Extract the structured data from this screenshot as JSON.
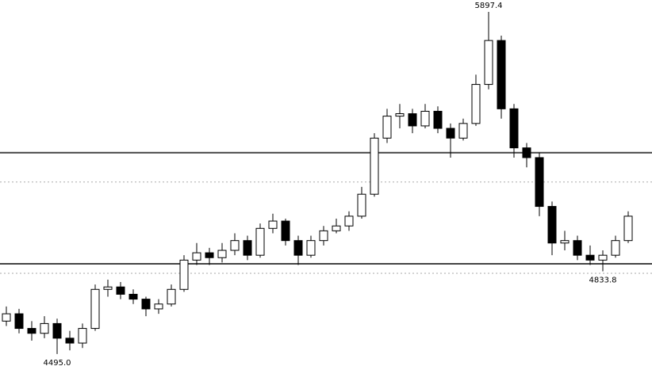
{
  "chart_data": {
    "type": "candlestick",
    "up_color": "#ffffff",
    "down_color": "#000000",
    "edge_color": "#000000",
    "ylim": [
      4446,
      5946
    ],
    "candles": [
      [
        4630,
        4690,
        4610,
        4660
      ],
      [
        4660,
        4680,
        4580,
        4600
      ],
      [
        4600,
        4630,
        4550,
        4580
      ],
      [
        4580,
        4650,
        4560,
        4620
      ],
      [
        4620,
        4640,
        4495,
        4560
      ],
      [
        4560,
        4590,
        4510,
        4540
      ],
      [
        4540,
        4620,
        4520,
        4600
      ],
      [
        4600,
        4780,
        4590,
        4760
      ],
      [
        4760,
        4800,
        4730,
        4770
      ],
      [
        4770,
        4790,
        4720,
        4740
      ],
      [
        4740,
        4760,
        4700,
        4720
      ],
      [
        4720,
        4730,
        4650,
        4680
      ],
      [
        4680,
        4720,
        4660,
        4700
      ],
      [
        4700,
        4780,
        4690,
        4760
      ],
      [
        4760,
        4900,
        4750,
        4880
      ],
      [
        4880,
        4950,
        4860,
        4910
      ],
      [
        4910,
        4930,
        4860,
        4890
      ],
      [
        4890,
        4950,
        4870,
        4920
      ],
      [
        4920,
        4990,
        4900,
        4960
      ],
      [
        4960,
        4980,
        4880,
        4900
      ],
      [
        4900,
        5030,
        4890,
        5010
      ],
      [
        5010,
        5070,
        4990,
        5040
      ],
      [
        5040,
        5050,
        4940,
        4960
      ],
      [
        4960,
        4980,
        4860,
        4900
      ],
      [
        4900,
        4980,
        4890,
        4960
      ],
      [
        4960,
        5020,
        4940,
        5000
      ],
      [
        5000,
        5050,
        4990,
        5020
      ],
      [
        5020,
        5080,
        5000,
        5060
      ],
      [
        5060,
        5180,
        5050,
        5150
      ],
      [
        5150,
        5400,
        5140,
        5380
      ],
      [
        5380,
        5500,
        5360,
        5470
      ],
      [
        5470,
        5520,
        5420,
        5480
      ],
      [
        5480,
        5500,
        5400,
        5430
      ],
      [
        5430,
        5520,
        5420,
        5490
      ],
      [
        5490,
        5510,
        5400,
        5420
      ],
      [
        5420,
        5440,
        5300,
        5380
      ],
      [
        5380,
        5460,
        5370,
        5440
      ],
      [
        5440,
        5640,
        5430,
        5600
      ],
      [
        5600,
        5897.4,
        5580,
        5780
      ],
      [
        5780,
        5800,
        5460,
        5500
      ],
      [
        5500,
        5520,
        5300,
        5340
      ],
      [
        5340,
        5360,
        5260,
        5300
      ],
      [
        5300,
        5320,
        5060,
        5100
      ],
      [
        5100,
        5120,
        4900,
        4950
      ],
      [
        4950,
        5000,
        4920,
        4960
      ],
      [
        4960,
        4980,
        4880,
        4900
      ],
      [
        4900,
        4940,
        4860,
        4880
      ],
      [
        4880,
        4920,
        4833.8,
        4900
      ],
      [
        4900,
        4980,
        4890,
        4960
      ],
      [
        4960,
        5080,
        4950,
        5060
      ]
    ],
    "hlines": [
      {
        "value": 5320,
        "style": "solid"
      },
      {
        "value": 4865,
        "style": "solid"
      },
      {
        "value": 5200,
        "style": "dotted"
      },
      {
        "value": 4826,
        "style": "dotted"
      }
    ],
    "annotations": [
      {
        "label": "5897.4",
        "value": 5897.4,
        "position": "above"
      },
      {
        "label": "4833.8",
        "value": 4833.8,
        "position": "below"
      },
      {
        "label": "4495.0",
        "value": 4495,
        "position": "below"
      }
    ]
  }
}
